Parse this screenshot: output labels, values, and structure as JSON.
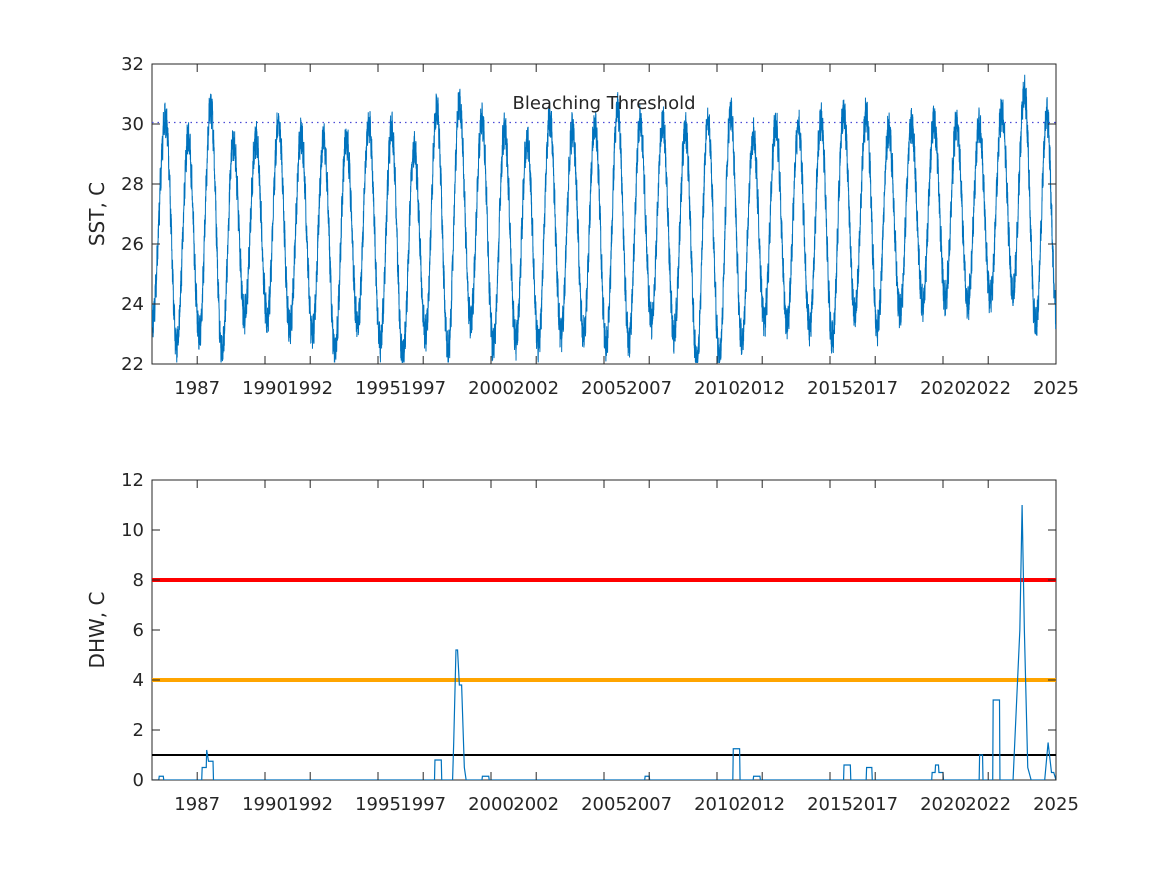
{
  "chart_data": [
    {
      "type": "line",
      "ylabel": "SST, C",
      "xlim": [
        1985.0,
        2025.0
      ],
      "ylim": [
        22,
        32
      ],
      "yticks": [
        22,
        24,
        26,
        28,
        30,
        32
      ],
      "xticks": [
        1987,
        1990,
        1992,
        1995,
        1997,
        2000,
        2002,
        2005,
        2007,
        2010,
        2012,
        2015,
        2017,
        2020,
        2022,
        2025
      ],
      "grid": false,
      "annotations": [
        {
          "text": "Bleaching Threshold",
          "x": 2005.0,
          "y": 30.5
        }
      ],
      "reference_lines": [
        {
          "y": 30.05,
          "style": "dotted",
          "color": "#4b4bd6"
        }
      ],
      "series_color": "#0072BD",
      "series_description_values": {
        "seasonal_peaks": [
          [
            1985.6,
            30.2
          ],
          [
            1986.6,
            29.5
          ],
          [
            1987.6,
            30.6
          ],
          [
            1988.6,
            29.4
          ],
          [
            1989.6,
            29.5
          ],
          [
            1990.6,
            30.0
          ],
          [
            1991.6,
            29.6
          ],
          [
            1992.6,
            29.5
          ],
          [
            1993.6,
            29.5
          ],
          [
            1994.6,
            30.0
          ],
          [
            1995.6,
            29.8
          ],
          [
            1996.6,
            29.2
          ],
          [
            1997.6,
            30.5
          ],
          [
            1998.6,
            30.7
          ],
          [
            1999.6,
            30.2
          ],
          [
            2000.6,
            29.8
          ],
          [
            2001.6,
            29.5
          ],
          [
            2002.6,
            30.2
          ],
          [
            2003.6,
            29.8
          ],
          [
            2004.6,
            30.0
          ],
          [
            2005.6,
            30.5
          ],
          [
            2006.6,
            30.0
          ],
          [
            2007.6,
            30.0
          ],
          [
            2008.6,
            29.8
          ],
          [
            2009.6,
            30.1
          ],
          [
            2010.6,
            30.4
          ],
          [
            2011.6,
            29.6
          ],
          [
            2012.6,
            30.0
          ],
          [
            2013.6,
            29.9
          ],
          [
            2014.6,
            30.1
          ],
          [
            2015.6,
            30.4
          ],
          [
            2016.6,
            30.3
          ],
          [
            2017.6,
            29.8
          ],
          [
            2018.6,
            30.0
          ],
          [
            2019.6,
            30.1
          ],
          [
            2020.6,
            30.0
          ],
          [
            2021.6,
            29.9
          ],
          [
            2022.6,
            30.4
          ],
          [
            2023.6,
            31.1
          ],
          [
            2024.6,
            30.3
          ]
        ],
        "seasonal_troughs": [
          [
            1986.1,
            22.6
          ],
          [
            1987.1,
            23.0
          ],
          [
            1988.1,
            22.4
          ],
          [
            1989.1,
            23.6
          ],
          [
            1990.1,
            23.5
          ],
          [
            1991.1,
            23.2
          ],
          [
            1992.1,
            23.0
          ],
          [
            1993.1,
            22.4
          ],
          [
            1994.1,
            23.3
          ],
          [
            1995.1,
            22.7
          ],
          [
            1996.1,
            22.2
          ],
          [
            1997.1,
            23.0
          ],
          [
            1998.1,
            22.4
          ],
          [
            1999.1,
            23.4
          ],
          [
            2000.1,
            22.6
          ],
          [
            2001.1,
            22.8
          ],
          [
            2002.1,
            22.7
          ],
          [
            2003.1,
            23.0
          ],
          [
            2004.1,
            23.0
          ],
          [
            2005.1,
            22.6
          ],
          [
            2006.1,
            22.8
          ],
          [
            2007.1,
            23.4
          ],
          [
            2008.1,
            23.0
          ],
          [
            2009.1,
            22.1
          ],
          [
            2010.1,
            22.3
          ],
          [
            2011.1,
            22.8
          ],
          [
            2012.1,
            23.5
          ],
          [
            2013.1,
            23.3
          ],
          [
            2014.1,
            23.2
          ],
          [
            2015.1,
            22.8
          ],
          [
            2016.1,
            23.7
          ],
          [
            2017.1,
            23.2
          ],
          [
            2018.1,
            23.7
          ],
          [
            2019.1,
            24.0
          ],
          [
            2020.1,
            24.2
          ],
          [
            2021.1,
            24.0
          ],
          [
            2022.1,
            24.2
          ],
          [
            2023.1,
            24.4
          ],
          [
            2024.1,
            23.3
          ],
          [
            2025.0,
            23.8
          ]
        ]
      }
    },
    {
      "type": "line",
      "ylabel": "DHW, C",
      "xlim": [
        1985.0,
        2025.0
      ],
      "ylim": [
        0,
        12
      ],
      "yticks": [
        0,
        2,
        4,
        6,
        8,
        10,
        12
      ],
      "xticks": [
        1987,
        1990,
        1992,
        1995,
        1997,
        2000,
        2002,
        2005,
        2007,
        2010,
        2012,
        2015,
        2017,
        2020,
        2022,
        2025
      ],
      "grid": false,
      "reference_lines": [
        {
          "y": 8,
          "color": "#ff0000"
        },
        {
          "y": 4,
          "color": "#ffa500"
        },
        {
          "y": 1,
          "color": "#000000"
        }
      ],
      "series_color": "#0072BD",
      "x": [
        1985.0,
        1985.3,
        1985.32,
        1985.5,
        1985.52,
        1987.2,
        1987.22,
        1987.4,
        1987.42,
        1987.5,
        1987.55,
        1987.7,
        1987.72,
        1997.5,
        1997.52,
        1997.8,
        1997.82,
        1998.3,
        1998.35,
        1998.45,
        1998.52,
        1998.6,
        1998.7,
        1998.82,
        1998.9,
        1999.6,
        1999.62,
        1999.9,
        1999.92,
        2006.8,
        2006.82,
        2007.0,
        2007.02,
        2010.7,
        2010.72,
        2011.0,
        2011.02,
        2011.6,
        2011.62,
        2011.9,
        2011.92,
        2015.6,
        2015.62,
        2015.9,
        2015.92,
        2016.6,
        2016.62,
        2016.85,
        2016.87,
        2019.5,
        2019.52,
        2019.65,
        2019.67,
        2019.8,
        2019.82,
        2020.0,
        2020.02,
        2021.6,
        2021.62,
        2021.75,
        2021.77,
        2022.2,
        2022.22,
        2022.5,
        2022.52,
        2022.9,
        2023.1,
        2023.4,
        2023.5,
        2023.6,
        2023.75,
        2023.9,
        2024.0,
        2024.5,
        2024.65,
        2024.8,
        2024.9,
        2025.0
      ],
      "y": [
        0,
        0,
        0.15,
        0.15,
        0,
        0,
        0.5,
        0.5,
        1.2,
        0.75,
        0.75,
        0.75,
        0,
        0,
        0.8,
        0.8,
        0,
        0,
        1.5,
        5.2,
        5.2,
        3.8,
        3.8,
        0.5,
        0,
        0,
        0.15,
        0.15,
        0,
        0,
        0.15,
        0.15,
        0,
        0,
        1.25,
        1.25,
        0,
        0,
        0.15,
        0.15,
        0,
        0,
        0.6,
        0.6,
        0,
        0,
        0.5,
        0.5,
        0,
        0,
        0.3,
        0.3,
        0.6,
        0.6,
        0.3,
        0.3,
        0,
        0,
        1.0,
        1.0,
        0,
        0,
        3.2,
        3.2,
        0,
        0,
        0,
        6.0,
        11.0,
        6.0,
        0.5,
        0,
        0,
        0,
        1.5,
        0.3,
        0.3,
        0
      ]
    }
  ]
}
